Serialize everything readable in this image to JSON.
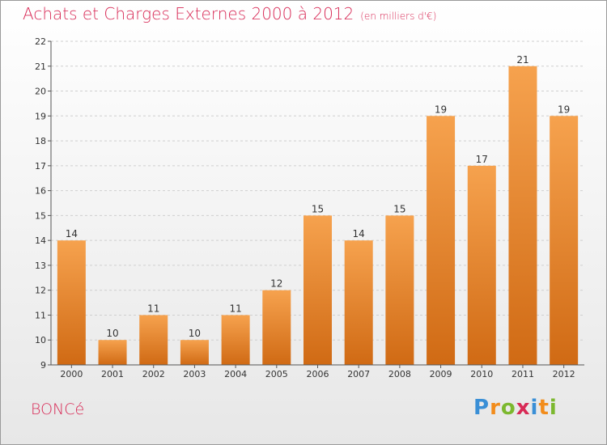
{
  "title": "Achats et Charges Externes 2000 à 2012",
  "subtitle": "(en milliers d'€)",
  "commune": "BONCé",
  "logo": {
    "text": "Proxiti",
    "letters": [
      "P",
      "r",
      "o",
      "x",
      "i",
      "t",
      "i"
    ],
    "colors": [
      "#3a8fd6",
      "#f28c1b",
      "#7cb82f",
      "#d82a56",
      "#3a8fd6",
      "#f28c1b",
      "#7cb82f"
    ]
  },
  "colors": {
    "accent": "#d82a56",
    "bar_top": "#f6a24e",
    "bar_bottom": "#d06a14",
    "grid": "#cfcfcf",
    "axis": "#555555"
  },
  "chart_data": {
    "type": "bar",
    "title": "Achats et Charges Externes 2000 à 2012",
    "subtitle": "(en milliers d'€)",
    "categories": [
      "2000",
      "2001",
      "2002",
      "2003",
      "2004",
      "2005",
      "2006",
      "2007",
      "2008",
      "2009",
      "2010",
      "2011",
      "2012"
    ],
    "values": [
      14,
      10,
      11,
      10,
      11,
      12,
      15,
      14,
      15,
      19,
      17,
      21,
      19
    ],
    "ylim": [
      9,
      22
    ],
    "yticks": [
      9,
      10,
      11,
      12,
      13,
      14,
      15,
      16,
      17,
      18,
      19,
      20,
      21,
      22
    ],
    "grid": true,
    "xlabel": "",
    "ylabel": ""
  }
}
